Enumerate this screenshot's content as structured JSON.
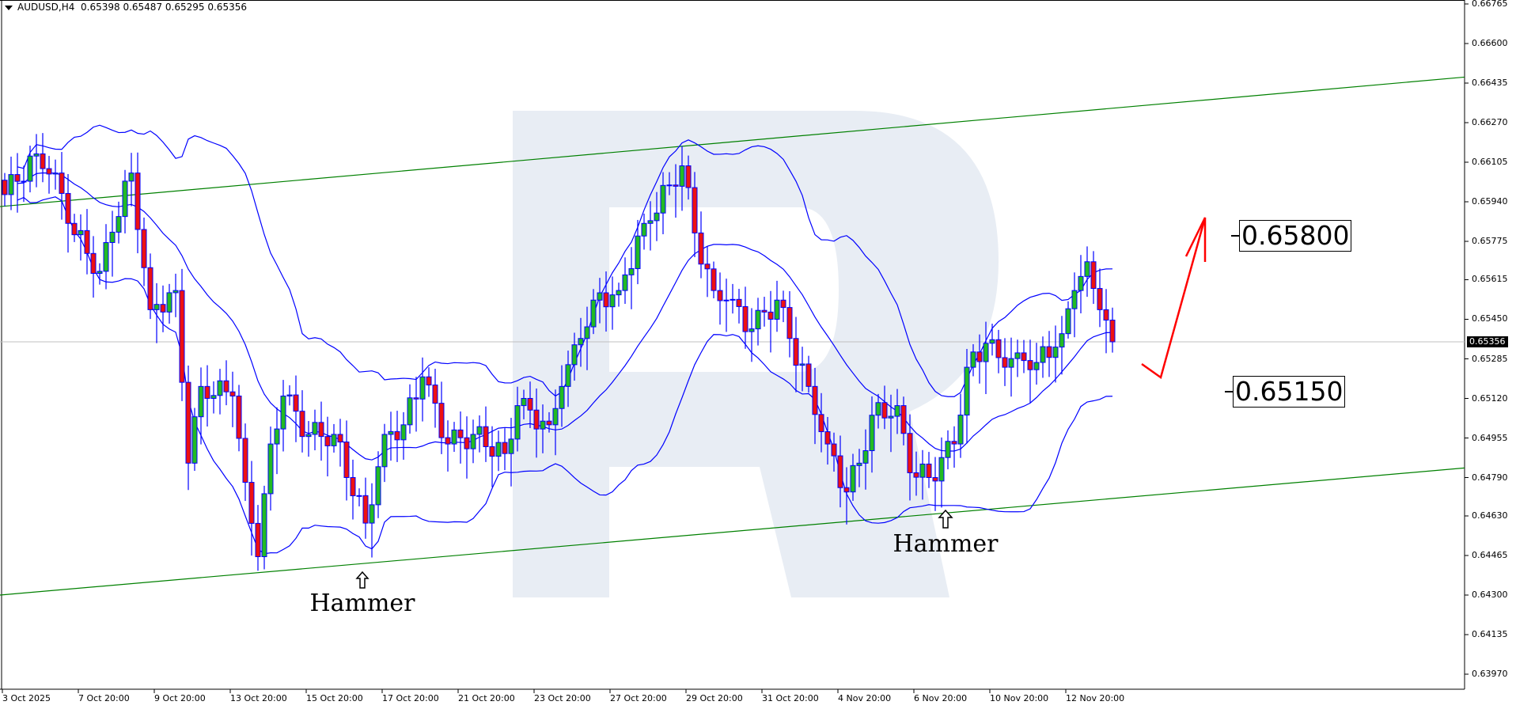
{
  "header": {
    "symbol": "AUDUSD,H4",
    "open": "0.65398",
    "high": "0.65487",
    "low": "0.65295",
    "close": "0.65356"
  },
  "price_axis": [
    "0.66765",
    "0.66600",
    "0.66435",
    "0.66270",
    "0.66105",
    "0.65940",
    "0.65775",
    "0.65615",
    "0.65450",
    "0.65285",
    "0.65120",
    "0.64955",
    "0.64790",
    "0.64630",
    "0.64465",
    "0.64300",
    "0.64135",
    "0.63970"
  ],
  "current_price": "0.65356",
  "time_axis": [
    "3 Oct 2025",
    "7 Oct 20:00",
    "9 Oct 20:00",
    "13 Oct 20:00",
    "15 Oct 20:00",
    "17 Oct 20:00",
    "21 Oct 20:00",
    "23 Oct 20:00",
    "27 Oct 20:00",
    "29 Oct 20:00",
    "31 Oct 20:00",
    "4 Nov 20:00",
    "6 Nov 20:00",
    "10 Nov 20:00",
    "12 Nov 20:00"
  ],
  "levels": {
    "target": "0.65800",
    "support": "0.65150"
  },
  "annotations": {
    "hammer_1": "Hammer",
    "hammer_2": "Hammer"
  },
  "colors": {
    "bull": "#22bb22",
    "bear": "#ee1111",
    "outline": "#0000ff",
    "bands": "#0000ff",
    "channel": "#008000",
    "forecast_arrow": "#ff0000",
    "watermark": "#e8edf4"
  },
  "indicators": {
    "bollinger_period": 20,
    "bollinger_dev": 2
  },
  "price_path_keypoints": [
    [
      0,
      0.6597
    ],
    [
      5,
      0.6614
    ],
    [
      8,
      0.6606
    ],
    [
      10,
      0.6585
    ],
    [
      15,
      0.6565
    ],
    [
      16,
      0.6577
    ],
    [
      20,
      0.6606
    ],
    [
      23,
      0.6549
    ],
    [
      27,
      0.6557
    ],
    [
      29,
      0.6485
    ],
    [
      31,
      0.6517
    ],
    [
      36,
      0.6513
    ],
    [
      38,
      0.6477
    ],
    [
      40,
      0.6446
    ],
    [
      42,
      0.6493
    ],
    [
      44,
      0.6513
    ],
    [
      48,
      0.6497
    ],
    [
      52,
      0.6497
    ],
    [
      57,
      0.646
    ],
    [
      60,
      0.6497
    ],
    [
      63,
      0.6501
    ],
    [
      66,
      0.6521
    ],
    [
      70,
      0.6493
    ],
    [
      74,
      0.6497
    ],
    [
      79,
      0.6489
    ],
    [
      81,
      0.6509
    ],
    [
      86,
      0.6501
    ],
    [
      88,
      0.6517
    ],
    [
      91,
      0.6537
    ],
    [
      93,
      0.6553
    ],
    [
      97,
      0.6557
    ],
    [
      101,
      0.6585
    ],
    [
      105,
      0.6601
    ],
    [
      107,
      0.6609
    ],
    [
      109,
      0.6581
    ],
    [
      112,
      0.6557
    ],
    [
      114,
      0.6553
    ],
    [
      118,
      0.6541
    ],
    [
      122,
      0.6553
    ],
    [
      124,
      0.6537
    ],
    [
      127,
      0.6517
    ],
    [
      130,
      0.6493
    ],
    [
      133,
      0.6473
    ],
    [
      135,
      0.6485
    ],
    [
      137,
      0.6505
    ],
    [
      141,
      0.6509
    ],
    [
      143,
      0.6481
    ],
    [
      146,
      0.6479
    ],
    [
      150,
      0.6493
    ],
    [
      152,
      0.6525
    ],
    [
      155,
      0.6535
    ],
    [
      158,
      0.6525
    ],
    [
      160,
      0.6531
    ],
    [
      163,
      0.6527
    ],
    [
      167,
      0.6539
    ],
    [
      169,
      0.6557
    ],
    [
      171,
      0.6569
    ],
    [
      173,
      0.6549
    ],
    [
      175,
      0.65356
    ]
  ],
  "channel": {
    "upper": [
      0.6592,
      0.6646
    ],
    "lower": [
      0.643,
      0.6483
    ]
  }
}
